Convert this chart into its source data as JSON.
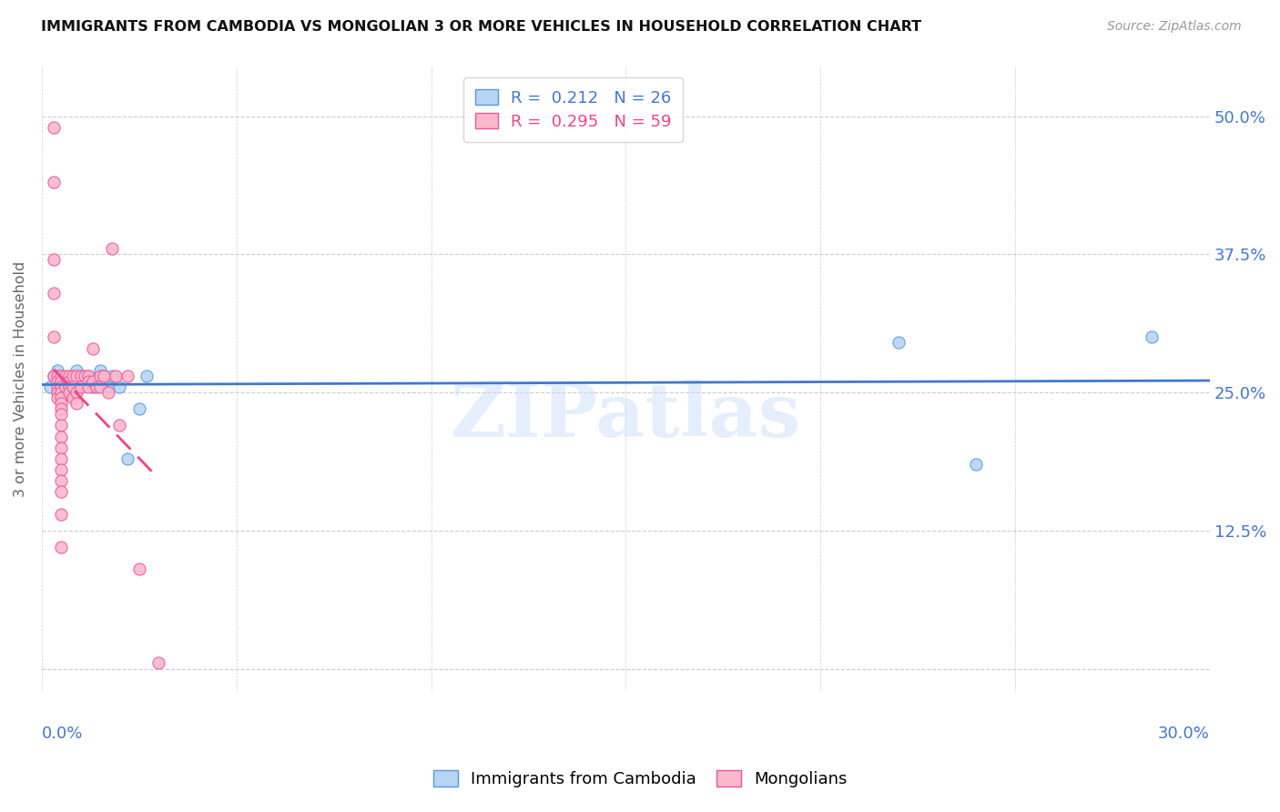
{
  "title": "IMMIGRANTS FROM CAMBODIA VS MONGOLIAN 3 OR MORE VEHICLES IN HOUSEHOLD CORRELATION CHART",
  "source": "Source: ZipAtlas.com",
  "ylabel": "3 or more Vehicles in Household",
  "yticks": [
    0.0,
    0.125,
    0.25,
    0.375,
    0.5
  ],
  "ytick_labels": [
    "",
    "12.5%",
    "25.0%",
    "37.5%",
    "50.0%"
  ],
  "xlim": [
    0.0,
    0.3
  ],
  "ylim": [
    -0.02,
    0.545
  ],
  "legend_blue_r": "R =  0.212",
  "legend_blue_n": "N = 26",
  "legend_pink_r": "R =  0.295",
  "legend_pink_n": "N = 59",
  "blue_fill": "#b8d4f5",
  "pink_fill": "#f9b8cc",
  "blue_edge": "#5599dd",
  "pink_edge": "#ee5599",
  "blue_line": "#4477cc",
  "pink_line": "#ee4488",
  "watermark": "ZIPatlas",
  "blue_scatter_x": [
    0.002,
    0.003,
    0.004,
    0.004,
    0.005,
    0.005,
    0.006,
    0.007,
    0.008,
    0.009,
    0.01,
    0.011,
    0.012,
    0.013,
    0.015,
    0.016,
    0.016,
    0.017,
    0.018,
    0.02,
    0.022,
    0.025,
    0.027,
    0.22,
    0.24,
    0.285
  ],
  "blue_scatter_y": [
    0.255,
    0.265,
    0.26,
    0.27,
    0.255,
    0.265,
    0.255,
    0.26,
    0.255,
    0.27,
    0.265,
    0.26,
    0.265,
    0.255,
    0.27,
    0.265,
    0.26,
    0.255,
    0.265,
    0.255,
    0.19,
    0.235,
    0.265,
    0.295,
    0.185,
    0.3
  ],
  "pink_scatter_x": [
    0.003,
    0.003,
    0.003,
    0.003,
    0.003,
    0.003,
    0.004,
    0.004,
    0.004,
    0.004,
    0.004,
    0.005,
    0.005,
    0.005,
    0.005,
    0.005,
    0.005,
    0.005,
    0.005,
    0.005,
    0.005,
    0.005,
    0.005,
    0.005,
    0.005,
    0.005,
    0.005,
    0.005,
    0.006,
    0.006,
    0.007,
    0.007,
    0.007,
    0.007,
    0.008,
    0.008,
    0.008,
    0.009,
    0.009,
    0.009,
    0.01,
    0.01,
    0.011,
    0.012,
    0.012,
    0.012,
    0.013,
    0.013,
    0.014,
    0.015,
    0.015,
    0.016,
    0.017,
    0.018,
    0.019,
    0.02,
    0.022,
    0.025,
    0.03
  ],
  "pink_scatter_y": [
    0.49,
    0.44,
    0.37,
    0.34,
    0.3,
    0.265,
    0.265,
    0.26,
    0.255,
    0.25,
    0.245,
    0.265,
    0.26,
    0.255,
    0.25,
    0.245,
    0.24,
    0.235,
    0.23,
    0.22,
    0.21,
    0.2,
    0.19,
    0.18,
    0.17,
    0.16,
    0.14,
    0.11,
    0.265,
    0.255,
    0.265,
    0.26,
    0.255,
    0.25,
    0.265,
    0.255,
    0.245,
    0.265,
    0.25,
    0.24,
    0.265,
    0.255,
    0.265,
    0.265,
    0.26,
    0.255,
    0.29,
    0.26,
    0.255,
    0.265,
    0.255,
    0.265,
    0.25,
    0.38,
    0.265,
    0.22,
    0.265,
    0.09,
    0.005
  ]
}
